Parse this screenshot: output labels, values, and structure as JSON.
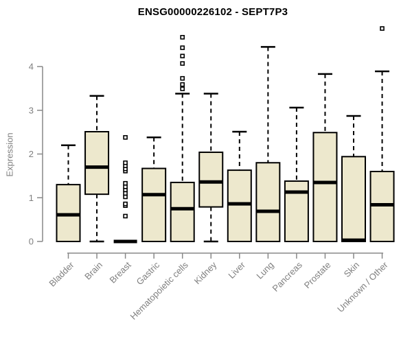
{
  "figure": {
    "background": "#ffffff"
  },
  "chart_data": {
    "type": "box",
    "title": "ENSG00000226102 - SEPT7P3",
    "ylabel": "Expression",
    "xlabel": "",
    "yticks": [
      0,
      1,
      2,
      3,
      4
    ],
    "ylim": [
      -0.27,
      4.95
    ],
    "grid": false,
    "legend": null,
    "colors": {
      "box_fill": "#EDE8CD",
      "box_stroke": "#000000",
      "median_stroke": "#000000",
      "whisker_stroke": "#000000",
      "axis_line": "#888888",
      "tick_label": "#7f7f7f",
      "title_text": "#000000"
    },
    "categories": [
      "Bladder",
      "Brain",
      "Breast",
      "Gastric",
      "Hematopoietic cells",
      "Kidney",
      "Liver",
      "Lung",
      "Pancreas",
      "Prostate",
      "Skin",
      "Unknown / Other"
    ],
    "boxes": [
      {
        "category": "Bladder",
        "whisker_low": 0,
        "q1": 0,
        "median": 0.61,
        "q3": 1.3,
        "whisker_high": 2.2,
        "outliers": []
      },
      {
        "category": "Brain",
        "whisker_low": 0,
        "q1": 1.08,
        "median": 1.7,
        "q3": 2.51,
        "whisker_high": 3.33,
        "outliers": []
      },
      {
        "category": "Breast",
        "whisker_low": 0,
        "q1": 0,
        "median": 0.0,
        "q3": 0,
        "whisker_high": 0,
        "outliers": [
          0.58,
          0.82,
          0.86,
          1.02,
          1.1,
          1.18,
          1.25,
          1.33,
          1.61,
          1.66,
          1.73,
          1.8,
          2.38
        ]
      },
      {
        "category": "Gastric",
        "whisker_low": 0,
        "q1": 0,
        "median": 1.07,
        "q3": 1.67,
        "whisker_high": 2.38,
        "outliers": []
      },
      {
        "category": "Hematopoietic cells",
        "whisker_low": 0,
        "q1": 0,
        "median": 0.75,
        "q3": 1.35,
        "whisker_high": 3.38,
        "outliers": [
          3.49,
          3.59,
          3.73,
          4.07,
          4.24,
          4.43,
          4.67
        ]
      },
      {
        "category": "Kidney",
        "whisker_low": 0,
        "q1": 0.79,
        "median": 1.36,
        "q3": 2.04,
        "whisker_high": 3.38,
        "outliers": []
      },
      {
        "category": "Liver",
        "whisker_low": 0,
        "q1": 0,
        "median": 0.86,
        "q3": 1.63,
        "whisker_high": 2.51,
        "outliers": []
      },
      {
        "category": "Lung",
        "whisker_low": 0,
        "q1": 0,
        "median": 0.69,
        "q3": 1.8,
        "whisker_high": 4.45,
        "outliers": []
      },
      {
        "category": "Pancreas",
        "whisker_low": 0,
        "q1": 0,
        "median": 1.13,
        "q3": 1.38,
        "whisker_high": 3.06,
        "outliers": []
      },
      {
        "category": "Prostate",
        "whisker_low": 0,
        "q1": 0,
        "median": 1.35,
        "q3": 2.49,
        "whisker_high": 3.83,
        "outliers": []
      },
      {
        "category": "Skin",
        "whisker_low": 0,
        "q1": 0,
        "median": 0.03,
        "q3": 1.94,
        "whisker_high": 2.87,
        "outliers": []
      },
      {
        "category": "Unknown / Other",
        "whisker_low": 0,
        "q1": 0,
        "median": 0.84,
        "q3": 1.6,
        "whisker_high": 3.89,
        "outliers": [
          4.87
        ]
      }
    ]
  }
}
